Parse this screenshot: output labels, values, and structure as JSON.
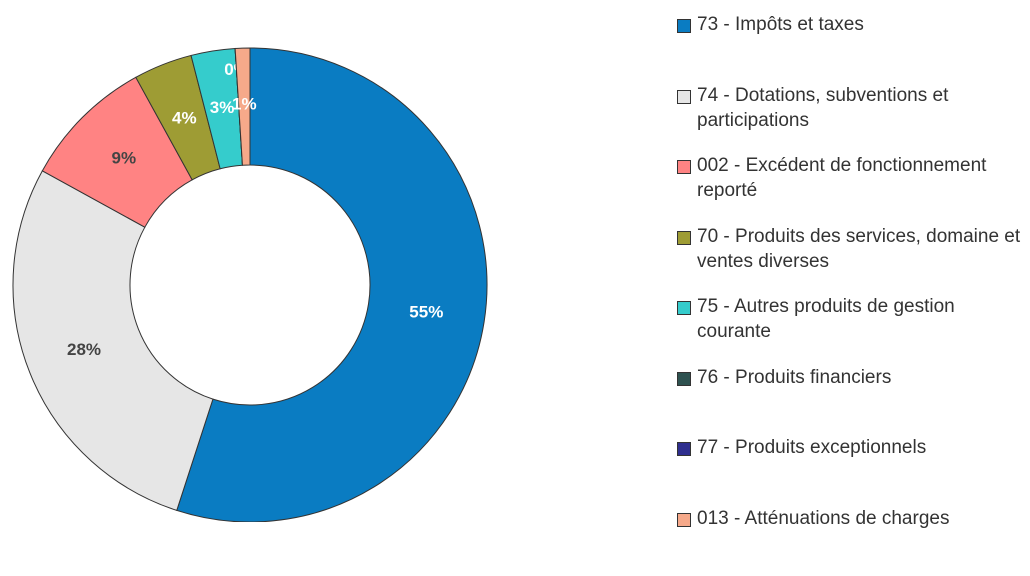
{
  "chart_data": {
    "type": "donut",
    "categories": [
      "73 - Impôts et taxes",
      "74 - Dotations, subventions et participations",
      "002 - Excédent de fonctionnement reporté",
      "70 - Produits des services, domaine et ventes diverses",
      "75 - Autres produits de gestion courante",
      "76 - Produits financiers",
      "77 - Produits exceptionnels",
      "013 - Atténuations de charges"
    ],
    "values": [
      55,
      28,
      9,
      4,
      3,
      0,
      0,
      1
    ],
    "value_labels": [
      "55%",
      "28%",
      "9%",
      "4%",
      "3%",
      "0%",
      null,
      "1%"
    ],
    "colors": [
      "#0a7cc2",
      "#e6e6e6",
      "#ff8383",
      "#9e9c34",
      "#35cccc",
      "#2e5250",
      "#2e2e8e",
      "#f6a98a"
    ],
    "label_colors": [
      "#ffffff",
      "#444444",
      "#444444",
      "#ffffff",
      "#ffffff",
      "#ffffff",
      "#ffffff",
      "#ffffff"
    ],
    "legend": "right"
  }
}
